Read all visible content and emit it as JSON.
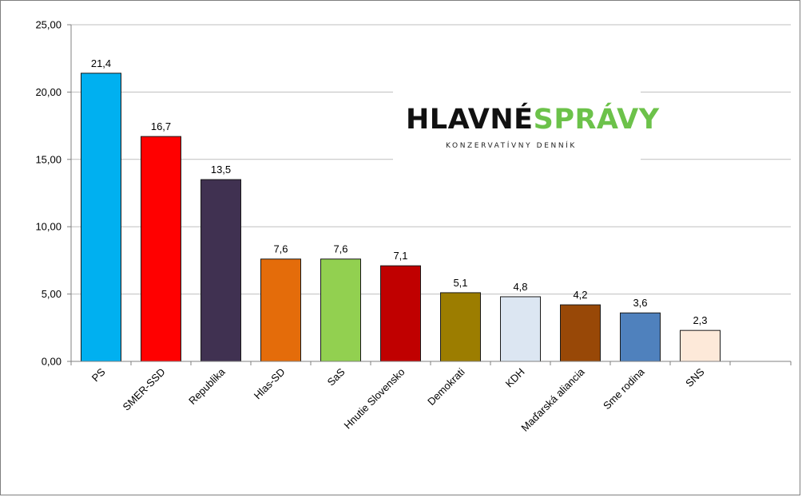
{
  "logo": {
    "word1": "HLAVNÉ",
    "word2": "SPRÁVY",
    "tagline": "KONZERVATÍVNY DENNÍK"
  },
  "chart_data": {
    "type": "bar",
    "title": "",
    "xlabel": "",
    "ylabel": "",
    "ylim": [
      0,
      25
    ],
    "yticks": [
      "0,00",
      "5,00",
      "10,00",
      "15,00",
      "20,00",
      "25,00"
    ],
    "ytick_values": [
      0,
      5,
      10,
      15,
      20,
      25
    ],
    "grid": true,
    "legend": "none",
    "categories": [
      "PS",
      "SMER-SSD",
      "Republika",
      "Hlas-SD",
      "SaS",
      "Hnutie Slovensko",
      "Demokrati",
      "KDH",
      "Maďarská aliancia",
      "Sme rodina",
      "SNS"
    ],
    "values": [
      21.4,
      16.7,
      13.5,
      7.6,
      7.6,
      7.1,
      5.1,
      4.8,
      4.2,
      3.6,
      2.3
    ],
    "value_labels": [
      "21,4",
      "16,7",
      "13,5",
      "7,6",
      "7,6",
      "7,1",
      "5,1",
      "4,8",
      "4,2",
      "3,6",
      "2,3"
    ],
    "colors": [
      "#00b0f0",
      "#ff0000",
      "#403151",
      "#e46c0a",
      "#92d050",
      "#c00000",
      "#9c7d00",
      "#dce6f2",
      "#984807",
      "#4f81bd",
      "#fde9d9"
    ]
  }
}
